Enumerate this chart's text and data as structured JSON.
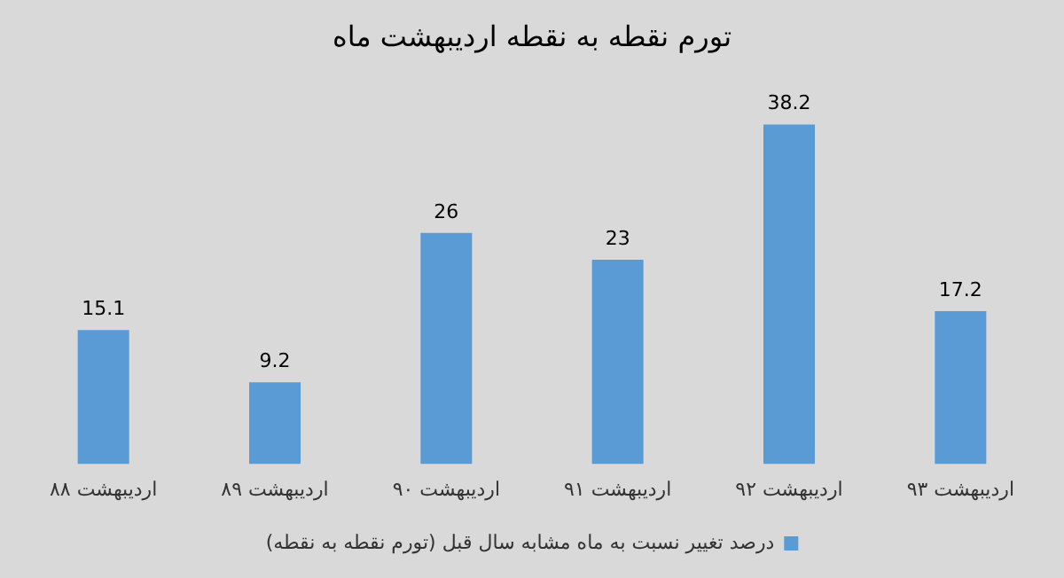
{
  "chart_data": {
    "type": "bar",
    "title": "تورم نقطه به نقطه اردیبهشت ماه",
    "categories": [
      "اردیبهشت ۸۸",
      "اردیبهشت ۸۹",
      "اردیبهشت ۹۰",
      "اردیبهشت ۹۱",
      "اردیبهشت ۹۲",
      "اردیبهشت ۹۳"
    ],
    "series": [
      {
        "name": "درصد تغییر نسبت به ماه مشابه سال قبل (تورم نقطه به نقطه)",
        "color": "#5b9bd5",
        "values": [
          15.1,
          9.2,
          26,
          23,
          38.2,
          17.2
        ]
      }
    ],
    "data_labels": true,
    "legend": "bottom",
    "grid": false,
    "tick_labels": "x"
  }
}
